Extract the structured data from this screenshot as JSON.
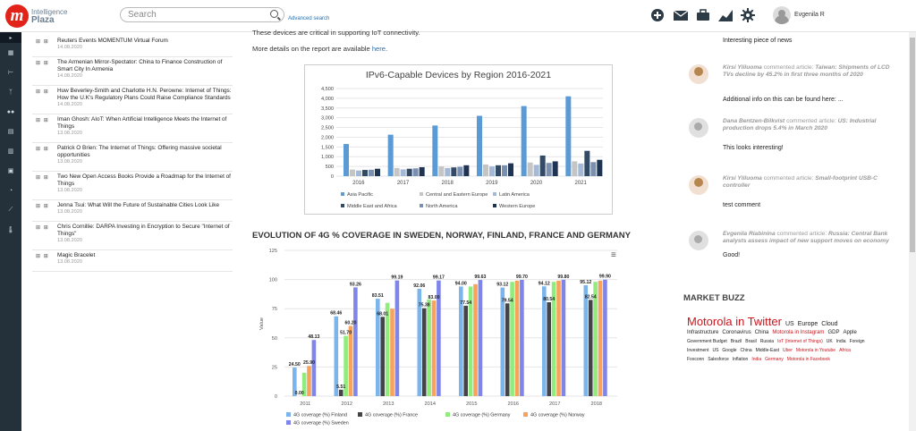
{
  "app": {
    "logo_line1": "Intelligence",
    "logo_line2": "Plaza",
    "search_placeholder": "Search",
    "advanced_search": "Advanced search",
    "user": "Evgenila R"
  },
  "news": [
    {
      "title": "Reuters Events MOMENTUM Virtual Forum",
      "date": "14.08.2020"
    },
    {
      "title": "The Armenian Mirror-Spectator: China to Finance Construction of Smart City In Armenia",
      "date": "14.08.2020"
    },
    {
      "title": "Huw Beverley-Smith and Charlotte H.N. Perowne: Internet of Things: How the U.K's Regulatory Plans Could Raise Compliance Standards",
      "date": "14.08.2020"
    },
    {
      "title": "Iman Ghosh: AIoT: When Artificial Intelligence Meets the Internet of Things",
      "date": "13.08.2020"
    },
    {
      "title": "Patrick O Brien: The Internet of Things: Offering massive societal opportunities",
      "date": "13.08.2020"
    },
    {
      "title": "Two New Open Access Books Provide a Roadmap for the Internet of Things",
      "date": "13.08.2020"
    },
    {
      "title": "Jenna Tsui: What Will the Future of Sustainable Cities Look Like",
      "date": "13.08.2020"
    },
    {
      "title": "Chris Cornillie: DARPA Investing in Encryption to Secure \"Internet of Things\"",
      "date": "13.08.2020"
    },
    {
      "title": "Magic Bracelet",
      "date": "13.08.2020"
    }
  ],
  "article": {
    "p1": "These devices are critical in supporting IoT connectivity.",
    "p2_prefix": "More details on the report are available ",
    "p2_link": "here",
    "p2_suffix": "."
  },
  "chart_data": [
    {
      "type": "bar",
      "title": "IPv6-Capable Devices by Region 2016-2021",
      "categories": [
        "2016",
        "2017",
        "2018",
        "2019",
        "2020",
        "2021"
      ],
      "ylim": [
        0,
        4500
      ],
      "yticks": [
        "0",
        "500",
        "1,000",
        "1,500",
        "2,000",
        "2,500",
        "3,000",
        "3,500",
        "4,000",
        "4,500"
      ],
      "series": [
        {
          "name": "Asia Pacific",
          "color": "#5b9bd5",
          "values": [
            1650,
            2130,
            2600,
            3100,
            3600,
            4100
          ]
        },
        {
          "name": "Central and Eastern Europe",
          "color": "#c5c5c5",
          "values": [
            340,
            420,
            500,
            600,
            700,
            760
          ]
        },
        {
          "name": "Latin America",
          "color": "#a4b9d6",
          "values": [
            290,
            350,
            420,
            500,
            580,
            650
          ]
        },
        {
          "name": "Middle East and Africa",
          "color": "#334a66",
          "values": [
            320,
            380,
            450,
            560,
            1060,
            1300
          ]
        },
        {
          "name": "North America",
          "color": "#7b8fb0",
          "values": [
            330,
            400,
            480,
            560,
            680,
            720
          ]
        },
        {
          "name": "Western Europe",
          "color": "#1f3353",
          "values": [
            380,
            460,
            560,
            660,
            760,
            840
          ]
        }
      ]
    },
    {
      "type": "bar",
      "title": "EVOLUTION OF 4G % COVERAGE IN SWEDEN, NORWAY, FINLAND, FRANCE AND GERMANY",
      "ylabel": "Value",
      "ylim": [
        0,
        125
      ],
      "yticks": [
        "0",
        "25",
        "50",
        "75",
        "100",
        "125"
      ],
      "categories": [
        "2011",
        "2012",
        "2013",
        "2014",
        "2015",
        "2016",
        "2017",
        "2018"
      ],
      "series": [
        {
          "name": "4G coverage (%) Finland",
          "color": "#7cb5ec",
          "values": [
            24.5,
            68.46,
            83.51,
            92.06,
            94.0,
            93.12,
            94.12,
            95.12
          ]
        },
        {
          "name": "4G coverage (%) France",
          "color": "#434348",
          "values": [
            0,
            5.51,
            68.01,
            75.38,
            77.54,
            79.54,
            80.54,
            82.54
          ]
        },
        {
          "name": "4G coverage (%) Germany",
          "color": "#90ed7d",
          "values": [
            20,
            51.7,
            80,
            83,
            94,
            98,
            98,
            98
          ]
        },
        {
          "name": "4G coverage (%) Norway",
          "color": "#f7a35c",
          "values": [
            25.9,
            60.2,
            75,
            82,
            96,
            99,
            99,
            99
          ]
        },
        {
          "name": "4G coverage (%) Sweden",
          "color": "#8085e9",
          "values": [
            48.13,
            93.26,
            99.19,
            99.17,
            99.63,
            99.7,
            99.8,
            99.9
          ]
        }
      ],
      "labels": [
        {
          "year": "2011",
          "s": 0,
          "text": "24.50"
        },
        {
          "year": "2011",
          "s": 1,
          "text": "0.00"
        },
        {
          "year": "2011",
          "s": 3,
          "text": "25.90"
        },
        {
          "year": "2011",
          "s": 4,
          "text": "48.13"
        },
        {
          "year": "2012",
          "s": 0,
          "text": "68.46"
        },
        {
          "year": "2012",
          "s": 1,
          "text": "5.51"
        },
        {
          "year": "2012",
          "s": 2,
          "text": "51.70"
        },
        {
          "year": "2012",
          "s": 3,
          "text": "60.20"
        },
        {
          "year": "2012",
          "s": 4,
          "text": "93.26"
        },
        {
          "year": "2013",
          "s": 0,
          "text": "83.51"
        },
        {
          "year": "2013",
          "s": 1,
          "text": "68.01"
        },
        {
          "year": "2013",
          "s": 4,
          "text": "99.19"
        },
        {
          "year": "2014",
          "s": 0,
          "text": "92.06"
        },
        {
          "year": "2014",
          "s": 1,
          "text": "75.38"
        },
        {
          "year": "2014",
          "s": 3,
          "text": "83.00"
        },
        {
          "year": "2014",
          "s": 4,
          "text": "99.17"
        },
        {
          "year": "2015",
          "s": 0,
          "text": "94.00"
        },
        {
          "year": "2015",
          "s": 1,
          "text": "77.54"
        },
        {
          "year": "2015",
          "s": 4,
          "text": "99.63"
        },
        {
          "year": "2016",
          "s": 0,
          "text": "93.12"
        },
        {
          "year": "2016",
          "s": 1,
          "text": "79.54"
        },
        {
          "year": "2016",
          "s": 4,
          "text": "99.70"
        },
        {
          "year": "2017",
          "s": 0,
          "text": "94.12"
        },
        {
          "year": "2017",
          "s": 1,
          "text": "80.54"
        },
        {
          "year": "2017",
          "s": 4,
          "text": "99.80"
        },
        {
          "year": "2018",
          "s": 0,
          "text": "95.12"
        },
        {
          "year": "2018",
          "s": 1,
          "text": "82.54"
        },
        {
          "year": "2018",
          "s": 4,
          "text": "99.90"
        }
      ]
    }
  ],
  "comments": [
    {
      "author": "",
      "action": "",
      "headline": "",
      "body": "Interesting piece of news",
      "av": "g"
    },
    {
      "author": "Kirsi Yliluoma",
      "action": " commented article: ",
      "headline": "Taiwan: Shipments of LCD TVs decline by 45.2% in first three months of 2020",
      "body": "Additional info on this can be found here: ...",
      "av": "w"
    },
    {
      "author": "Dana Bentzen-Bilkvist",
      "action": " commented article: ",
      "headline": "US: Industrial production drops 5.4% in March 2020",
      "body": "This looks interesting!",
      "av": "g"
    },
    {
      "author": "Kirsi Yliluoma",
      "action": " commented article: ",
      "headline": "Small-footprint USB-C controller",
      "body": "test comment",
      "av": "w"
    },
    {
      "author": "Evgenila Riabinina",
      "action": " commented article: ",
      "headline": "Russia: Central Bank analysts assess impact of new support moves on economy",
      "body": "Good!",
      "av": "g"
    }
  ],
  "buzz": {
    "title": "MARKET BUZZ",
    "words": [
      {
        "w": "Motorola in Twitter",
        "s": 13,
        "c": "#c8161d"
      },
      {
        "w": "US",
        "s": 7,
        "c": "#222"
      },
      {
        "w": "Europe",
        "s": 7,
        "c": "#222"
      },
      {
        "w": "Cloud",
        "s": 7,
        "c": "#222"
      },
      {
        "w": "Infrastructure",
        "s": 6,
        "c": "#222"
      },
      {
        "w": "Coronavirus",
        "s": 6,
        "c": "#222"
      },
      {
        "w": "China",
        "s": 6,
        "c": "#222"
      },
      {
        "w": "Motorola in Instagram",
        "s": 6,
        "c": "#c8161d"
      },
      {
        "w": "GDP",
        "s": 6,
        "c": "#222"
      },
      {
        "w": "Apple",
        "s": 6,
        "c": "#222"
      },
      {
        "w": "Government Budget",
        "s": 5,
        "c": "#222"
      },
      {
        "w": "Brazil",
        "s": 5,
        "c": "#222"
      },
      {
        "w": "Brasil",
        "s": 5,
        "c": "#222"
      },
      {
        "w": "Russia",
        "s": 5,
        "c": "#222"
      },
      {
        "w": "IoT (Internet of Things)",
        "s": 5,
        "c": "#c8161d"
      },
      {
        "w": "UK",
        "s": 5,
        "c": "#222"
      },
      {
        "w": "India",
        "s": 5,
        "c": "#222"
      },
      {
        "w": "Foreign",
        "s": 5,
        "c": "#222"
      },
      {
        "w": "Investment",
        "s": 5,
        "c": "#222"
      },
      {
        "w": "US",
        "s": 5,
        "c": "#222"
      },
      {
        "w": "Google",
        "s": 5,
        "c": "#222"
      },
      {
        "w": "China",
        "s": 5,
        "c": "#222"
      },
      {
        "w": "Middle-East",
        "s": 5,
        "c": "#222"
      },
      {
        "w": "Uber",
        "s": 5,
        "c": "#c8161d"
      },
      {
        "w": "Motorola in Youtube",
        "s": 5,
        "c": "#c8161d"
      },
      {
        "w": "Africa",
        "s": 5,
        "c": "#c8161d"
      },
      {
        "w": "Foxconn",
        "s": 5,
        "c": "#222"
      },
      {
        "w": "Salesforce",
        "s": 5,
        "c": "#222"
      },
      {
        "w": "Inflation",
        "s": 5,
        "c": "#222"
      },
      {
        "w": "India",
        "s": 5,
        "c": "#c8161d"
      },
      {
        "w": "Germany",
        "s": 5,
        "c": "#c8161d"
      },
      {
        "w": "Motorola in Facebook",
        "s": 5,
        "c": "#c8161d"
      }
    ]
  }
}
